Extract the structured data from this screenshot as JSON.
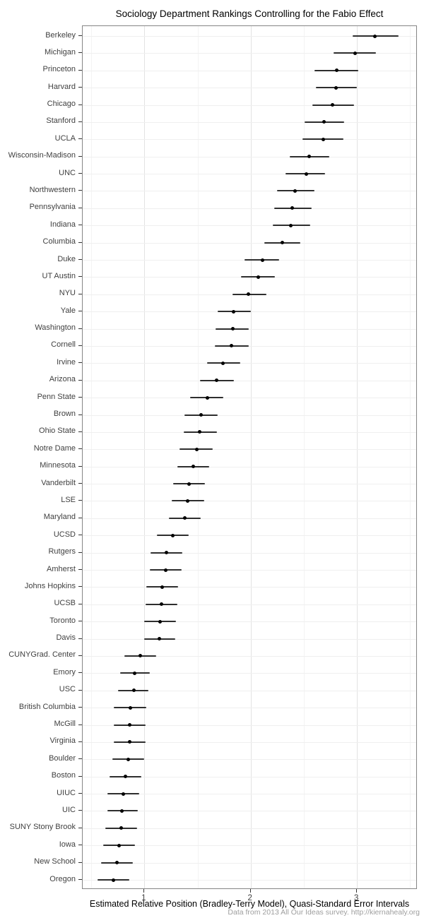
{
  "figure": {
    "title": "Sociology Department Rankings Controlling for the Fabio Effect",
    "x_axis_label": "Estimated Relative Position (Bradley-Terry Model), Quasi-Standard Error Intervals",
    "caption": "Data from 2013 All Our Ideas survey. http://kiernahealy.org"
  },
  "chart_data": {
    "type": "scatter",
    "subtype": "dot-plot-with-error-bars",
    "title": "Sociology Department Rankings Controlling for the Fabio Effect",
    "xlabel": "Estimated Relative Position (Bradley-Terry Model), Quasi-Standard Error Intervals",
    "ylabel": "",
    "xlim": [
      0.42,
      3.57
    ],
    "x_major_ticks": [
      1,
      2,
      3
    ],
    "x_minor_ticks": [
      0.5,
      1.5,
      2.5,
      3.5
    ],
    "grid": true,
    "legend": "none",
    "points": [
      {
        "label": "Berkeley",
        "estimate": 3.17,
        "lo": 2.96,
        "hi": 3.39
      },
      {
        "label": "Michigan",
        "estimate": 2.98,
        "lo": 2.78,
        "hi": 3.18
      },
      {
        "label": "Princeton",
        "estimate": 2.81,
        "lo": 2.6,
        "hi": 3.01
      },
      {
        "label": "Harvard",
        "estimate": 2.8,
        "lo": 2.61,
        "hi": 3.0
      },
      {
        "label": "Chicago",
        "estimate": 2.77,
        "lo": 2.58,
        "hi": 2.97
      },
      {
        "label": "Stanford",
        "estimate": 2.69,
        "lo": 2.51,
        "hi": 2.88
      },
      {
        "label": "UCLA",
        "estimate": 2.68,
        "lo": 2.49,
        "hi": 2.87
      },
      {
        "label": "Wisconsin-Madison",
        "estimate": 2.55,
        "lo": 2.37,
        "hi": 2.74
      },
      {
        "label": "UNC",
        "estimate": 2.52,
        "lo": 2.33,
        "hi": 2.7
      },
      {
        "label": "Northwestern",
        "estimate": 2.42,
        "lo": 2.25,
        "hi": 2.6
      },
      {
        "label": "Pennsylvania",
        "estimate": 2.39,
        "lo": 2.22,
        "hi": 2.57
      },
      {
        "label": "Indiana",
        "estimate": 2.38,
        "lo": 2.21,
        "hi": 2.56
      },
      {
        "label": "Columbia",
        "estimate": 2.3,
        "lo": 2.13,
        "hi": 2.47
      },
      {
        "label": "Duke",
        "estimate": 2.11,
        "lo": 1.94,
        "hi": 2.27
      },
      {
        "label": "UT Austin",
        "estimate": 2.07,
        "lo": 1.91,
        "hi": 2.23
      },
      {
        "label": "NYU",
        "estimate": 1.98,
        "lo": 1.83,
        "hi": 2.15
      },
      {
        "label": "Yale",
        "estimate": 1.84,
        "lo": 1.69,
        "hi": 2.0
      },
      {
        "label": "Washington",
        "estimate": 1.83,
        "lo": 1.67,
        "hi": 1.98
      },
      {
        "label": "Cornell",
        "estimate": 1.82,
        "lo": 1.66,
        "hi": 1.98
      },
      {
        "label": "Irvine",
        "estimate": 1.74,
        "lo": 1.59,
        "hi": 1.9
      },
      {
        "label": "Arizona",
        "estimate": 1.68,
        "lo": 1.52,
        "hi": 1.84
      },
      {
        "label": "Penn State",
        "estimate": 1.59,
        "lo": 1.43,
        "hi": 1.74
      },
      {
        "label": "Brown",
        "estimate": 1.53,
        "lo": 1.38,
        "hi": 1.69
      },
      {
        "label": "Ohio State",
        "estimate": 1.52,
        "lo": 1.37,
        "hi": 1.68
      },
      {
        "label": "Notre Dame",
        "estimate": 1.49,
        "lo": 1.33,
        "hi": 1.64
      },
      {
        "label": "Minnesota",
        "estimate": 1.46,
        "lo": 1.31,
        "hi": 1.61
      },
      {
        "label": "Vanderbilt",
        "estimate": 1.42,
        "lo": 1.27,
        "hi": 1.57
      },
      {
        "label": "LSE",
        "estimate": 1.41,
        "lo": 1.26,
        "hi": 1.56
      },
      {
        "label": "Maryland",
        "estimate": 1.38,
        "lo": 1.23,
        "hi": 1.53
      },
      {
        "label": "UCSD",
        "estimate": 1.27,
        "lo": 1.12,
        "hi": 1.42
      },
      {
        "label": "Rutgers",
        "estimate": 1.21,
        "lo": 1.06,
        "hi": 1.36
      },
      {
        "label": "Amherst",
        "estimate": 1.2,
        "lo": 1.05,
        "hi": 1.35
      },
      {
        "label": "Johns Hopkins",
        "estimate": 1.17,
        "lo": 1.02,
        "hi": 1.32
      },
      {
        "label": "UCSB",
        "estimate": 1.16,
        "lo": 1.01,
        "hi": 1.31
      },
      {
        "label": "Toronto",
        "estimate": 1.15,
        "lo": 1.0,
        "hi": 1.3
      },
      {
        "label": "Davis",
        "estimate": 1.14,
        "lo": 1.0,
        "hi": 1.29
      },
      {
        "label": "CUNYGrad. Center",
        "estimate": 0.96,
        "lo": 0.81,
        "hi": 1.11
      },
      {
        "label": "Emory",
        "estimate": 0.91,
        "lo": 0.77,
        "hi": 1.05
      },
      {
        "label": "USC",
        "estimate": 0.9,
        "lo": 0.75,
        "hi": 1.04
      },
      {
        "label": "British Columbia",
        "estimate": 0.87,
        "lo": 0.71,
        "hi": 1.02
      },
      {
        "label": "McGill",
        "estimate": 0.86,
        "lo": 0.71,
        "hi": 1.01
      },
      {
        "label": "Virginia",
        "estimate": 0.86,
        "lo": 0.71,
        "hi": 1.01
      },
      {
        "label": "Boulder",
        "estimate": 0.85,
        "lo": 0.7,
        "hi": 1.0
      },
      {
        "label": "Boston",
        "estimate": 0.82,
        "lo": 0.67,
        "hi": 0.97
      },
      {
        "label": "UIUC",
        "estimate": 0.8,
        "lo": 0.65,
        "hi": 0.95
      },
      {
        "label": "UIC",
        "estimate": 0.79,
        "lo": 0.65,
        "hi": 0.94
      },
      {
        "label": "SUNY Stony Brook",
        "estimate": 0.78,
        "lo": 0.63,
        "hi": 0.93
      },
      {
        "label": "Iowa",
        "estimate": 0.76,
        "lo": 0.61,
        "hi": 0.91
      },
      {
        "label": "New School",
        "estimate": 0.74,
        "lo": 0.59,
        "hi": 0.89
      },
      {
        "label": "Oregon",
        "estimate": 0.71,
        "lo": 0.56,
        "hi": 0.86
      }
    ],
    "colors": {
      "point": "#000000",
      "interval": "#2e2e2e",
      "grid_major": "#e3e3e3",
      "grid_minor": "#f4f4f4",
      "row_grid": "#efefef",
      "panel_border": "#858585",
      "axis_text": "#404040",
      "tick_mark": "#333333",
      "caption_text": "#9e9e9e"
    }
  }
}
